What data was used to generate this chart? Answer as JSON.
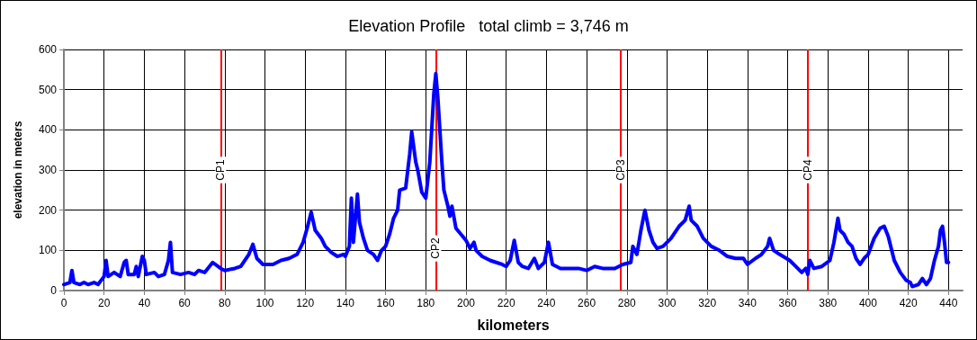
{
  "chart_data": {
    "type": "line",
    "title": "Elevation Profile   total climb = 3,746 m",
    "xlabel": "kilometers",
    "ylabel": "elevation in meters",
    "x": [
      0,
      3,
      4,
      5,
      8,
      10,
      12,
      15,
      17,
      20,
      21,
      22,
      25,
      28,
      30,
      31,
      32,
      35,
      36,
      37,
      39,
      40,
      41,
      45,
      47,
      50,
      52,
      53,
      54,
      58,
      62,
      65,
      67,
      70,
      74,
      78,
      80,
      85,
      88,
      92,
      94,
      96,
      99,
      104,
      108,
      112,
      116,
      119,
      121,
      123,
      125,
      128,
      130,
      133,
      136,
      139,
      140,
      142,
      143,
      144,
      146,
      147,
      149,
      151,
      154,
      156,
      158,
      160,
      162,
      164,
      166,
      167,
      170,
      172,
      173,
      175,
      176,
      178,
      180,
      182,
      184,
      185,
      186,
      188,
      189,
      191,
      192,
      193,
      195,
      200,
      202,
      204,
      205,
      208,
      212,
      215,
      218,
      220,
      222,
      224,
      226,
      228,
      231,
      234,
      236,
      239,
      241,
      243,
      247,
      252,
      256,
      260,
      264,
      268,
      274,
      278,
      282,
      283,
      285,
      287,
      289,
      291,
      293,
      295,
      298,
      302,
      306,
      309,
      311,
      312,
      315,
      318,
      322,
      326,
      330,
      334,
      338,
      340,
      344,
      347,
      350,
      351,
      353,
      356,
      361,
      364,
      367,
      369,
      370,
      371,
      373,
      377,
      381,
      383,
      385,
      386,
      388,
      390,
      392,
      394,
      396,
      398,
      400,
      403,
      406,
      408,
      410,
      413,
      416,
      419,
      421,
      422,
      425,
      427,
      429,
      431,
      433,
      435,
      436,
      437,
      438,
      439,
      440
    ],
    "series": [
      {
        "color": "#0000ff",
        "values": [
          15,
          20,
          50,
          20,
          15,
          20,
          15,
          20,
          15,
          35,
          75,
          35,
          45,
          35,
          70,
          75,
          40,
          40,
          60,
          35,
          85,
          75,
          40,
          45,
          35,
          40,
          75,
          120,
          45,
          40,
          45,
          40,
          50,
          45,
          70,
          55,
          50,
          55,
          60,
          90,
          115,
          80,
          65,
          65,
          75,
          80,
          90,
          120,
          155,
          195,
          150,
          130,
          110,
          95,
          85,
          90,
          85,
          110,
          230,
          120,
          240,
          170,
          130,
          100,
          90,
          75,
          100,
          110,
          140,
          180,
          200,
          250,
          255,
          340,
          395,
          320,
          300,
          245,
          230,
          320,
          490,
          540,
          480,
          320,
          250,
          210,
          185,
          210,
          155,
          125,
          105,
          120,
          100,
          85,
          75,
          70,
          65,
          60,
          75,
          125,
          70,
          60,
          55,
          80,
          55,
          70,
          120,
          65,
          55,
          55,
          55,
          50,
          60,
          55,
          55,
          65,
          70,
          110,
          90,
          150,
          200,
          150,
          120,
          105,
          110,
          130,
          160,
          175,
          210,
          175,
          160,
          130,
          110,
          100,
          85,
          80,
          80,
          65,
          80,
          90,
          110,
          130,
          100,
          90,
          75,
          60,
          45,
          55,
          40,
          75,
          55,
          60,
          75,
          120,
          180,
          150,
          140,
          120,
          110,
          80,
          65,
          80,
          90,
          130,
          155,
          160,
          135,
          75,
          45,
          25,
          20,
          10,
          15,
          30,
          15,
          30,
          75,
          110,
          150,
          160,
          120,
          70,
          70
        ]
      }
    ],
    "xlim": [
      0,
      447
    ],
    "xticks": [
      0,
      20,
      40,
      60,
      80,
      100,
      120,
      140,
      160,
      180,
      200,
      220,
      240,
      260,
      280,
      300,
      320,
      340,
      360,
      380,
      400,
      420,
      440
    ],
    "ylim": [
      0,
      600
    ],
    "yticks": [
      0,
      100,
      200,
      300,
      400,
      500,
      600
    ],
    "grid": true,
    "marker": "none",
    "line_style": "solid",
    "ref_lines": [
      {
        "axis": "x",
        "value": 78,
        "label": "CP1",
        "color": "#ff0000"
      },
      {
        "axis": "x",
        "value": 185,
        "label": "CP2",
        "color": "#ff0000"
      },
      {
        "axis": "x",
        "value": 277,
        "label": "CP3",
        "color": "#ff0000"
      },
      {
        "axis": "x",
        "value": 370,
        "label": "CP4",
        "color": "#ff0000"
      }
    ]
  }
}
